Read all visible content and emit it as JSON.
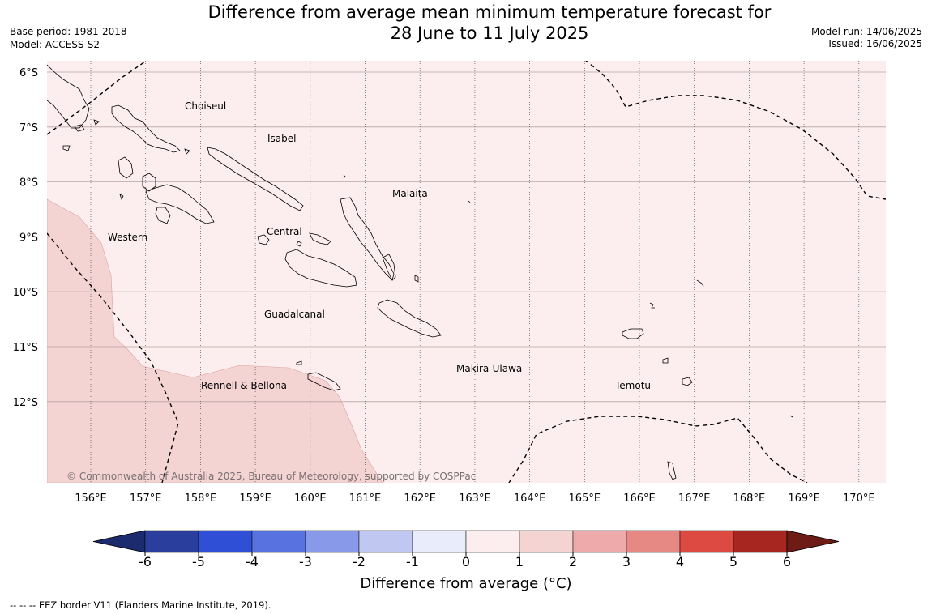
{
  "header": {
    "title_line1": "Difference from average mean minimum temperature forecast for",
    "title_line2": "28 June to 11 July 2025",
    "base_period": "Base period: 1981-2018",
    "model": "Model: ACCESS-S2",
    "model_run": "Model run: 14/06/2025",
    "issued": "Issued: 16/06/2025"
  },
  "map": {
    "lat_labels": [
      "6°S",
      "7°S",
      "8°S",
      "9°S",
      "10°S",
      "11°S",
      "12°S"
    ],
    "lon_labels": [
      "156°E",
      "157°E",
      "158°E",
      "159°E",
      "160°E",
      "161°E",
      "162°E",
      "163°E",
      "164°E",
      "165°E",
      "166°E",
      "167°E",
      "168°E",
      "169°E",
      "170°E"
    ],
    "provinces": [
      "Choiseul",
      "Isabel",
      "Malaita",
      "Western",
      "Central",
      "Guadalcanal",
      "Makira-Ulawa",
      "Rennell & Bellona",
      "Temotu"
    ],
    "copyright": "© Commonwealth of Australia 2025, Bureau of Meteorology, supported by COSPPac",
    "shading": {
      "background_category": "0 to 1",
      "southwest_category": "1 to 2"
    }
  },
  "colorbar": {
    "ticks": [
      "-6",
      "-5",
      "-4",
      "-3",
      "-2",
      "-1",
      "0",
      "1",
      "2",
      "3",
      "4",
      "5",
      "6"
    ],
    "colors": [
      "#2a3f9d",
      "#2f4fd6",
      "#5873df",
      "#8799e8",
      "#c0c8f2",
      "#e9ecfb",
      "#fceeee",
      "#f4d3d3",
      "#eeaaaa",
      "#e68883",
      "#dd4a41",
      "#a82620"
    ],
    "low_extend_color": "#1c2a6e",
    "high_extend_color": "#6e1b16",
    "label": "Difference from average (°C)"
  },
  "footnote": "--  --  -- EEZ border V11 (Flanders Marine Institute, 2019)."
}
